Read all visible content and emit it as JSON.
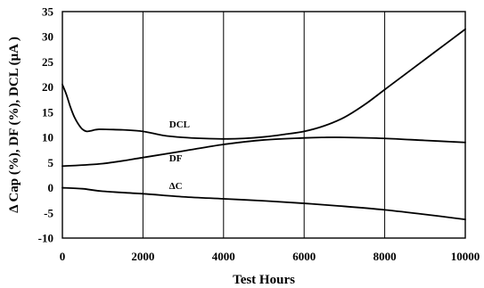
{
  "chart_data": {
    "type": "line",
    "title": "",
    "xlabel": "Test Hours",
    "ylabel": "Δ Cap (%), DF (%), DCL (μA )",
    "xlim": [
      0,
      10000
    ],
    "ylim": [
      -10,
      35
    ],
    "x_ticks": [
      "0",
      "2000",
      "4000",
      "6000",
      "8000",
      "10000"
    ],
    "y_ticks": [
      "-10",
      "-5",
      "0",
      "5",
      "10",
      "15",
      "20",
      "25",
      "30",
      "35"
    ],
    "grid": "vertical",
    "series": [
      {
        "name": "DCL",
        "x": [
          0,
          100,
          200,
          300,
          400,
          500,
          600,
          700,
          800,
          900,
          1000,
          1500,
          2000,
          2500,
          3000,
          3500,
          4000,
          4500,
          5000,
          5500,
          6000,
          6500,
          7000,
          7500,
          8000,
          8500,
          9000,
          9500,
          10000
        ],
        "y": [
          20.5,
          18.5,
          16.0,
          14.0,
          12.6,
          11.6,
          11.2,
          11.3,
          11.5,
          11.6,
          11.6,
          11.5,
          11.2,
          10.4,
          10.0,
          9.8,
          9.7,
          9.8,
          10.1,
          10.6,
          11.2,
          12.3,
          14.0,
          16.5,
          19.5,
          22.5,
          25.5,
          28.5,
          31.5
        ]
      },
      {
        "name": "DF",
        "x": [
          0,
          1000,
          2000,
          3000,
          4000,
          5000,
          6000,
          6500,
          7000,
          8000,
          9000,
          10000
        ],
        "y": [
          4.3,
          4.8,
          6.0,
          7.3,
          8.6,
          9.5,
          9.9,
          10.0,
          10.0,
          9.8,
          9.4,
          9.0
        ]
      },
      {
        "name": "ΔC",
        "x": [
          0,
          500,
          1000,
          2000,
          3000,
          4000,
          5000,
          6000,
          7000,
          8000,
          9000,
          10000
        ],
        "y": [
          0.0,
          -0.2,
          -0.7,
          -1.2,
          -1.8,
          -2.2,
          -2.6,
          -3.1,
          -3.7,
          -4.4,
          -5.3,
          -6.3
        ]
      }
    ],
    "series_labels": [
      {
        "text": "DCL",
        "x": 2650,
        "y": 12.0
      },
      {
        "text": "DF",
        "x": 2650,
        "y": 5.2
      },
      {
        "text": "ΔC",
        "x": 2650,
        "y": -0.3
      }
    ]
  }
}
